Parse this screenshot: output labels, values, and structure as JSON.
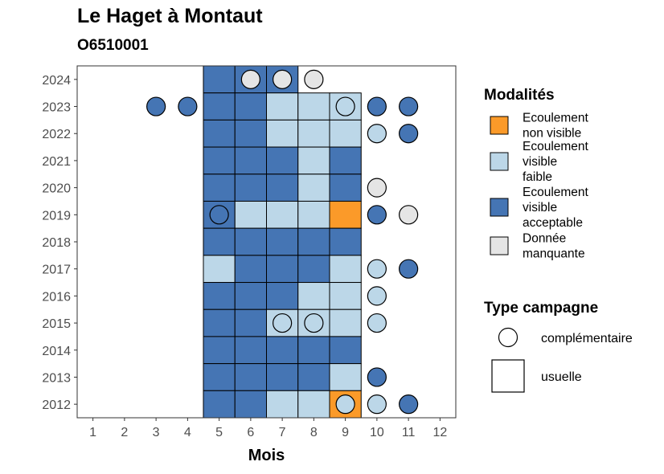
{
  "title": "Le Haget à Montaut",
  "subtitle": "O6510001",
  "chart_data": {
    "type": "heatmap",
    "xlabel": "Mois",
    "ylabel": "",
    "x_ticks": [
      1,
      2,
      3,
      4,
      5,
      6,
      7,
      8,
      9,
      10,
      11,
      12
    ],
    "y_ticks": [
      2012,
      2013,
      2014,
      2015,
      2016,
      2017,
      2018,
      2019,
      2020,
      2021,
      2022,
      2023,
      2024
    ],
    "xlim": [
      0.5,
      12.5
    ],
    "ylim": [
      2011.5,
      2024.5
    ],
    "legend_modalites": {
      "title": "Modalités",
      "items": [
        {
          "key": "nv",
          "label_lines": [
            "Ecoulement",
            "non visible"
          ],
          "color": "#fb9a29"
        },
        {
          "key": "vf",
          "label_lines": [
            "Ecoulement",
            "visible",
            "faible"
          ],
          "color": "#bcd7e8"
        },
        {
          "key": "va",
          "label_lines": [
            "Ecoulement",
            "visible",
            "acceptable"
          ],
          "color": "#4575b4"
        },
        {
          "key": "dm",
          "label_lines": [
            "Donnée",
            "manquante"
          ],
          "color": "#e5e5e5"
        }
      ]
    },
    "legend_type": {
      "title": "Type campagne",
      "items": [
        {
          "key": "complementaire",
          "label": "complémentaire",
          "shape": "circle"
        },
        {
          "key": "usuelle",
          "label": "usuelle",
          "shape": "square"
        }
      ]
    },
    "usuelle": [
      {
        "year": 2024,
        "months": {
          "5": "va",
          "6": "va",
          "7": "va"
        }
      },
      {
        "year": 2023,
        "months": {
          "5": "va",
          "6": "va",
          "7": "vf",
          "8": "vf",
          "9": "vf"
        }
      },
      {
        "year": 2022,
        "months": {
          "5": "va",
          "6": "va",
          "7": "vf",
          "8": "vf",
          "9": "vf"
        }
      },
      {
        "year": 2021,
        "months": {
          "5": "va",
          "6": "va",
          "7": "va",
          "8": "vf",
          "9": "va"
        }
      },
      {
        "year": 2020,
        "months": {
          "5": "va",
          "6": "va",
          "7": "va",
          "8": "vf",
          "9": "va"
        }
      },
      {
        "year": 2019,
        "months": {
          "5": "va",
          "6": "vf",
          "7": "vf",
          "8": "vf",
          "9": "nv"
        }
      },
      {
        "year": 2018,
        "months": {
          "5": "va",
          "6": "va",
          "7": "va",
          "8": "va",
          "9": "va"
        }
      },
      {
        "year": 2017,
        "months": {
          "5": "vf",
          "6": "va",
          "7": "va",
          "8": "va",
          "9": "vf"
        }
      },
      {
        "year": 2016,
        "months": {
          "5": "va",
          "6": "va",
          "7": "va",
          "8": "vf",
          "9": "vf"
        }
      },
      {
        "year": 2015,
        "months": {
          "5": "va",
          "6": "va",
          "7": "vf",
          "8": "vf",
          "9": "vf"
        }
      },
      {
        "year": 2014,
        "months": {
          "5": "va",
          "6": "va",
          "7": "va",
          "8": "va",
          "9": "va"
        }
      },
      {
        "year": 2013,
        "months": {
          "5": "va",
          "6": "va",
          "7": "va",
          "8": "va",
          "9": "vf"
        }
      },
      {
        "year": 2012,
        "months": {
          "5": "va",
          "6": "va",
          "7": "vf",
          "8": "vf",
          "9": "nv"
        }
      }
    ],
    "complementaire": [
      {
        "year": 2024,
        "month": 6,
        "modalite": "dm"
      },
      {
        "year": 2024,
        "month": 7,
        "modalite": "dm"
      },
      {
        "year": 2024,
        "month": 8,
        "modalite": "dm"
      },
      {
        "year": 2023,
        "month": 3,
        "modalite": "va"
      },
      {
        "year": 2023,
        "month": 4,
        "modalite": "va"
      },
      {
        "year": 2023,
        "month": 9,
        "modalite": "vf"
      },
      {
        "year": 2023,
        "month": 10,
        "modalite": "va"
      },
      {
        "year": 2023,
        "month": 11,
        "modalite": "va"
      },
      {
        "year": 2022,
        "month": 10,
        "modalite": "vf"
      },
      {
        "year": 2022,
        "month": 11,
        "modalite": "va"
      },
      {
        "year": 2020,
        "month": 10,
        "modalite": "dm"
      },
      {
        "year": 2019,
        "month": 5,
        "modalite": "va"
      },
      {
        "year": 2019,
        "month": 10,
        "modalite": "va"
      },
      {
        "year": 2019,
        "month": 11,
        "modalite": "dm"
      },
      {
        "year": 2017,
        "month": 10,
        "modalite": "vf"
      },
      {
        "year": 2017,
        "month": 11,
        "modalite": "va"
      },
      {
        "year": 2016,
        "month": 10,
        "modalite": "vf"
      },
      {
        "year": 2015,
        "month": 7,
        "modalite": "vf"
      },
      {
        "year": 2015,
        "month": 8,
        "modalite": "vf"
      },
      {
        "year": 2015,
        "month": 10,
        "modalite": "vf"
      },
      {
        "year": 2013,
        "month": 10,
        "modalite": "va"
      },
      {
        "year": 2012,
        "month": 9,
        "modalite": "vf"
      },
      {
        "year": 2012,
        "month": 10,
        "modalite": "vf"
      },
      {
        "year": 2012,
        "month": 11,
        "modalite": "va"
      }
    ]
  }
}
